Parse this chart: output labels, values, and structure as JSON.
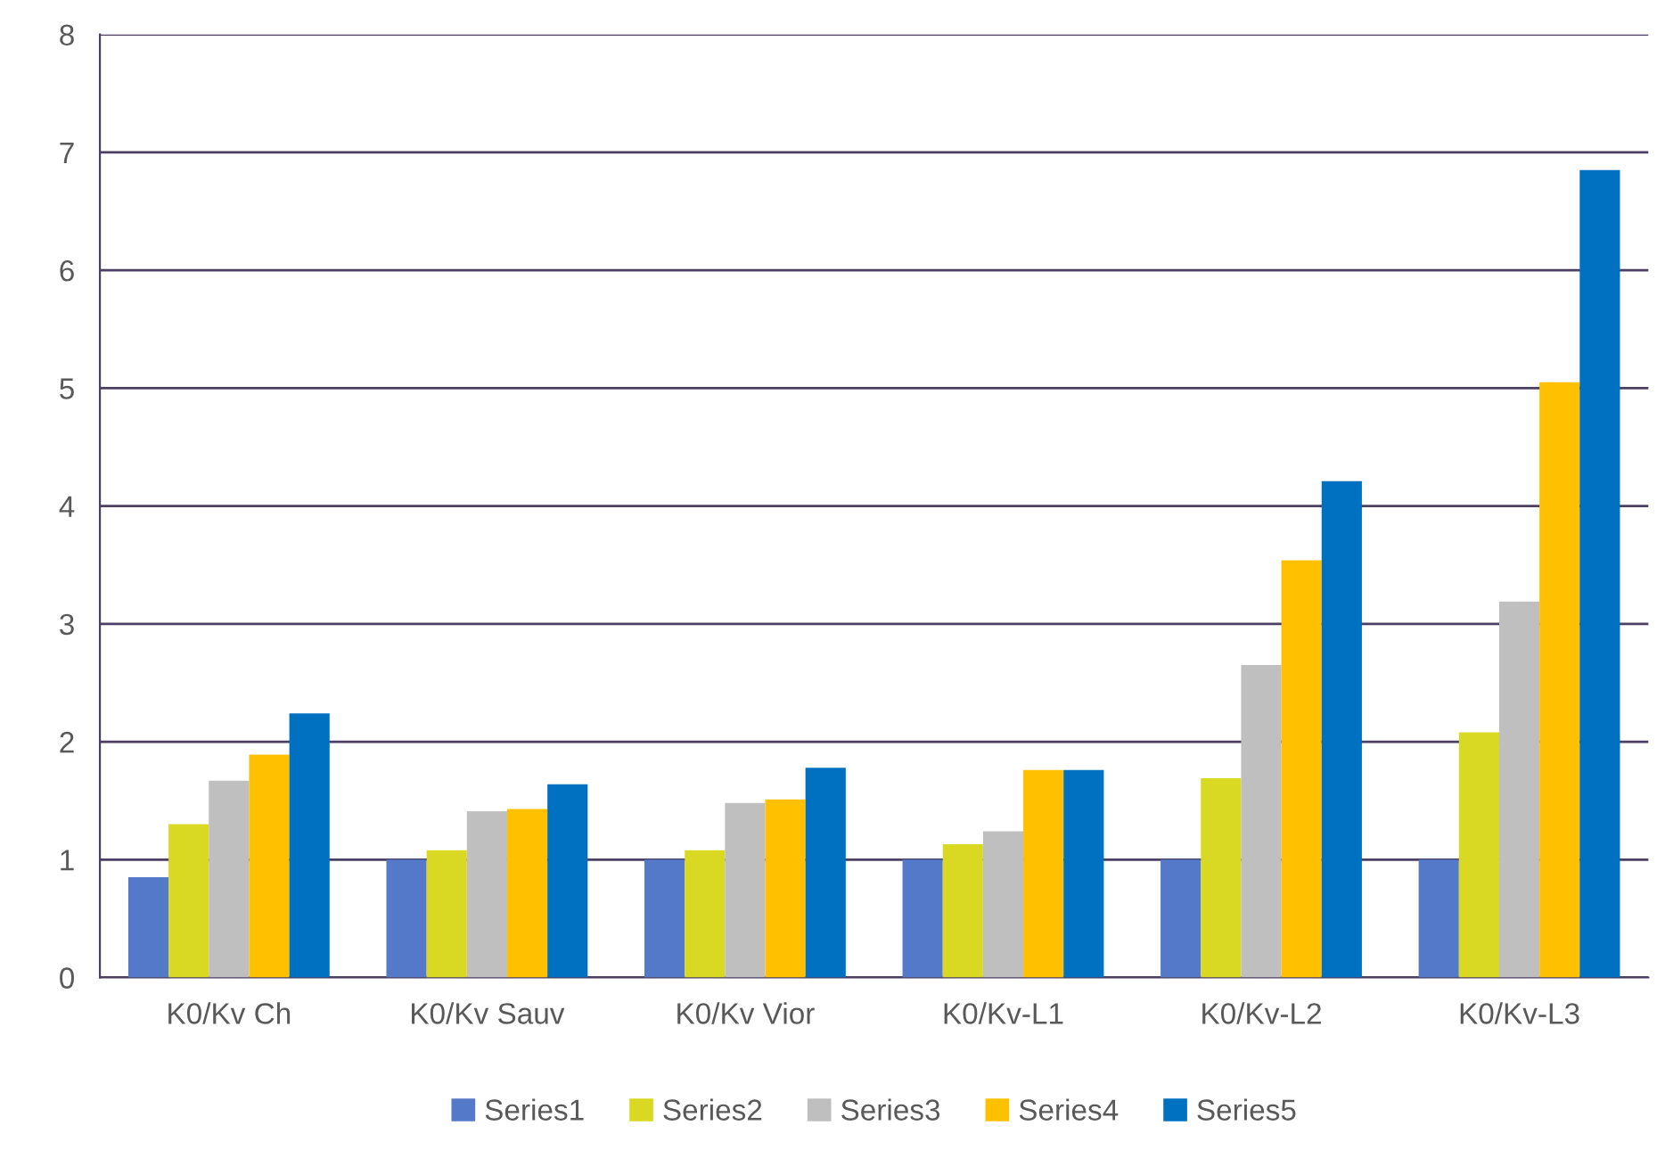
{
  "chart_data": {
    "type": "bar",
    "categories": [
      "K0/Kv Ch",
      "K0/Kv Sauv",
      "K0/Kv Vior",
      "K0/Kv-L1",
      "K0/Kv-L2",
      "K0/Kv-L3"
    ],
    "series": [
      {
        "name": "Series1",
        "color": "#5479c8",
        "values": [
          0.85,
          1.0,
          1.0,
          1.0,
          1.0,
          1.0
        ]
      },
      {
        "name": "Series2",
        "color": "#d9d924",
        "values": [
          1.3,
          1.08,
          1.08,
          1.13,
          1.69,
          2.08
        ]
      },
      {
        "name": "Series3",
        "color": "#bfbfbf",
        "values": [
          1.67,
          1.41,
          1.48,
          1.24,
          2.65,
          3.19
        ]
      },
      {
        "name": "Series4",
        "color": "#ffc000",
        "values": [
          1.89,
          1.43,
          1.51,
          1.76,
          3.54,
          5.05
        ]
      },
      {
        "name": "Series5",
        "color": "#0070c0",
        "values": [
          2.24,
          1.64,
          1.78,
          1.76,
          4.21,
          6.85
        ]
      }
    ],
    "ylim": [
      0,
      8
    ],
    "yticks": [
      0,
      1,
      2,
      3,
      4,
      5,
      6,
      7,
      8
    ],
    "grid": "y",
    "legend": "bottom"
  }
}
